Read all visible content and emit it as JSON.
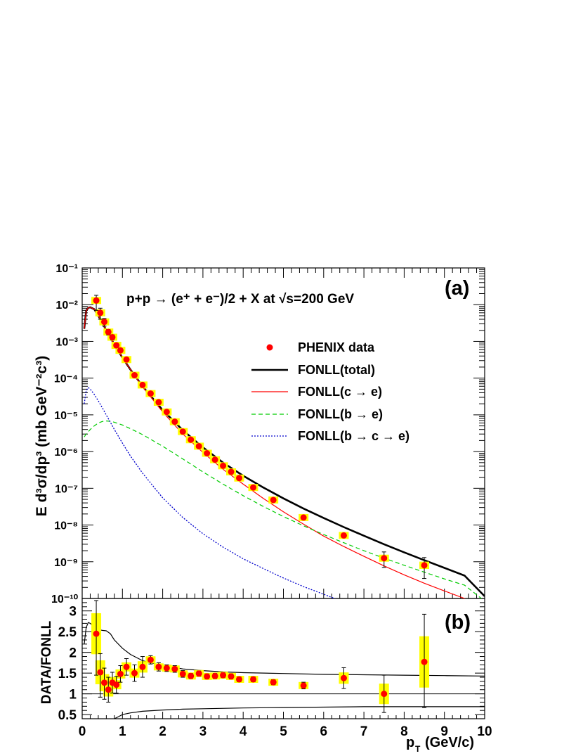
{
  "chart_data": [
    {
      "panel": "a",
      "type": "scatter",
      "panel_label": "(a)",
      "title": "p+p → (e⁺ + e⁻)/2 + X at √s=200 GeV",
      "ylabel": "E d³σ/dp³ (mb GeV⁻²c³)",
      "yscale": "log",
      "ylim": [
        1e-10,
        0.1
      ],
      "xlim": [
        0,
        10
      ],
      "y_tick_labels": [
        "10⁻¹⁰",
        "10⁻⁹",
        "10⁻⁸",
        "10⁻⁷",
        "10⁻⁶",
        "10⁻⁵",
        "10⁻⁴",
        "10⁻³",
        "10⁻²",
        "10⁻¹"
      ],
      "legend_position": "top-right",
      "series": [
        {
          "name": "PHENIX data",
          "style": "points",
          "color": "#ff0000",
          "x": [
            0.35,
            0.45,
            0.55,
            0.65,
            0.75,
            0.85,
            0.95,
            1.1,
            1.3,
            1.5,
            1.7,
            1.9,
            2.1,
            2.3,
            2.5,
            2.7,
            2.9,
            3.1,
            3.3,
            3.5,
            3.7,
            3.9,
            4.25,
            4.75,
            5.5,
            6.5,
            7.5,
            8.5
          ],
          "y": [
            0.013,
            0.006,
            0.0034,
            0.0018,
            0.0013,
            0.00078,
            0.00057,
            0.00032,
            0.00012,
            6.5e-05,
            3.8e-05,
            2.2e-05,
            1.2e-05,
            6.5e-06,
            3.5e-06,
            2.1e-06,
            1.4e-06,
            9e-07,
            6e-07,
            4.1e-07,
            2.8e-07,
            1.9e-07,
            1.05e-07,
            4.8e-08,
            1.6e-08,
            5.2e-09,
            1.25e-09,
            8e-10
          ],
          "yerr_low": [
            0.006,
            0.002,
            0.0008,
            0.0003,
            0.0002,
            0.0001,
            7e-05,
            3.5e-05,
            1.2e-05,
            6e-06,
            3e-06,
            1.6e-06,
            8e-07,
            4e-07,
            2e-07,
            1.2e-07,
            8e-08,
            5e-08,
            3e-08,
            2e-08,
            1.4e-08,
            9e-09,
            5e-09,
            2.5e-09,
            1e-09,
            3.5e-10,
            5.5e-10,
            4.5e-10
          ],
          "yerr_high": [
            0.005,
            0.002,
            0.0008,
            0.0003,
            0.0002,
            0.0001,
            7e-05,
            3.5e-05,
            1.2e-05,
            6e-06,
            3e-06,
            1.6e-06,
            8e-07,
            4e-07,
            2e-07,
            1.2e-07,
            8e-08,
            5e-08,
            3e-08,
            2e-08,
            1.4e-08,
            9e-09,
            5e-09,
            2.5e-09,
            1e-09,
            3.5e-10,
            6e-10,
            5e-10
          ]
        },
        {
          "name": "FONLL(total)",
          "style": "solid-thick",
          "color": "#000000",
          "x": [
            0.05,
            0.1,
            0.15,
            0.2,
            0.3,
            0.4,
            0.5,
            0.6,
            0.8,
            1.0,
            1.2,
            1.5,
            2.0,
            2.5,
            3.0,
            3.5,
            4.0,
            4.5,
            5.0,
            5.5,
            6.0,
            6.5,
            7.0,
            7.5,
            8.0,
            8.5,
            9.0,
            9.5,
            10.0
          ],
          "y": [
            0.0022,
            0.0068,
            0.0082,
            0.0085,
            0.0075,
            0.005,
            0.0032,
            0.002,
            0.00082,
            0.00036,
            0.00017,
            6e-05,
            1.35e-05,
            3.8e-06,
            1.3e-06,
            5e-07,
            2.2e-07,
            1.05e-07,
            5.3e-08,
            2.8e-08,
            1.55e-08,
            8.8e-09,
            5.1e-09,
            3e-09,
            1.8e-09,
            1.1e-09,
            6.8e-10,
            4.2e-10,
            1.15e-10
          ]
        },
        {
          "name": "FONLL(c → e)",
          "style": "solid-thin",
          "color": "#ff0000",
          "x": [
            0.05,
            0.1,
            0.15,
            0.2,
            0.3,
            0.4,
            0.5,
            0.6,
            0.8,
            1.0,
            1.2,
            1.5,
            2.0,
            2.5,
            3.0,
            3.5,
            4.0,
            4.5,
            5.0,
            5.5,
            6.0,
            6.5,
            7.0,
            7.5,
            8.0,
            8.5,
            9.0,
            9.5,
            9.9
          ],
          "y": [
            0.0022,
            0.0068,
            0.0082,
            0.0085,
            0.0075,
            0.005,
            0.0032,
            0.002,
            0.00082,
            0.00036,
            0.00017,
            5.8e-05,
            1.2e-05,
            3e-06,
            9.5e-07,
            3.3e-07,
            1.3e-07,
            5.3e-08,
            2.3e-08,
            1.05e-08,
            5e-09,
            2.6e-09,
            1.4e-09,
            7.7e-10,
            4.4e-10,
            2.6e-10,
            1.6e-10,
            1e-10,
            6.5e-11
          ]
        },
        {
          "name": "FONLL(b → e)",
          "style": "dashed",
          "color": "#00cc00",
          "x": [
            0.05,
            0.1,
            0.2,
            0.3,
            0.4,
            0.5,
            0.6,
            0.7,
            0.8,
            1.0,
            1.2,
            1.5,
            2.0,
            2.5,
            3.0,
            3.5,
            4.0,
            4.5,
            5.0,
            5.5,
            6.0,
            6.5,
            7.0,
            7.5,
            8.0,
            8.5,
            9.0,
            9.5,
            10.0
          ],
          "y": [
            2.5e-06,
            3e-06,
            4e-06,
            5e-06,
            6e-06,
            6.6e-06,
            6.8e-06,
            6.7e-06,
            6.3e-06,
            5.3e-06,
            4.2e-06,
            2.9e-06,
            1.4e-06,
            6.3e-07,
            2.8e-07,
            1.3e-07,
            6.3e-08,
            3.2e-08,
            1.7e-08,
            9.5e-09,
            5.5e-09,
            3.3e-09,
            2e-09,
            1.25e-09,
            8e-10,
            5.2e-10,
            3.4e-10,
            2.3e-10,
            8.5e-11
          ]
        },
        {
          "name": "FONLL(b → c → e)",
          "style": "dotted",
          "color": "#0000cc",
          "x": [
            0.05,
            0.1,
            0.15,
            0.2,
            0.3,
            0.4,
            0.5,
            0.6,
            0.8,
            1.0,
            1.2,
            1.5,
            2.0,
            2.5,
            3.0,
            3.5,
            4.0,
            4.5,
            5.0,
            5.5,
            6.0,
            6.5,
            7.0,
            7.2
          ],
          "y": [
            2e-05,
            4.5e-05,
            5.5e-05,
            5e-05,
            3.6e-05,
            2.4e-05,
            1.55e-05,
            9.8e-06,
            4e-06,
            1.7e-06,
            7.5e-07,
            2.6e-07,
            5.5e-08,
            1.6e-08,
            5.8e-09,
            2.5e-09,
            1.2e-09,
            6.5e-10,
            3.6e-10,
            2.1e-10,
            1.3e-10,
            8e-11,
            5e-11,
            4e-11
          ]
        }
      ]
    },
    {
      "panel": "b",
      "type": "scatter",
      "panel_label": "(b)",
      "ylabel": "DATA/FONLL",
      "xlabel": "p",
      "xlabel_sub": "T",
      "xlabel_unit": "(GeV/c)",
      "ylim": [
        0.4,
        3.3
      ],
      "xlim": [
        0,
        10
      ],
      "x_ticks": [
        0,
        1,
        2,
        3,
        4,
        5,
        6,
        7,
        8,
        9,
        10
      ],
      "x_tick_labels": [
        "0",
        "1",
        "2",
        "3",
        "4",
        "5",
        "6",
        "7",
        "8",
        "9",
        "10"
      ],
      "y_ticks": [
        0.5,
        1,
        1.5,
        2,
        2.5,
        3
      ],
      "y_tick_labels": [
        "0.5",
        "1",
        "1.5",
        "2",
        "2.5",
        "3"
      ],
      "reference_line": 1,
      "series": [
        {
          "name": "ratio",
          "style": "points",
          "color": "#ff0000",
          "x": [
            0.35,
            0.45,
            0.55,
            0.65,
            0.75,
            0.85,
            0.95,
            1.1,
            1.3,
            1.5,
            1.7,
            1.9,
            2.1,
            2.3,
            2.5,
            2.7,
            2.9,
            3.1,
            3.3,
            3.5,
            3.7,
            3.9,
            4.25,
            4.75,
            5.5,
            6.5,
            7.5,
            8.5
          ],
          "y": [
            2.45,
            1.52,
            1.27,
            1.1,
            1.27,
            1.22,
            1.48,
            1.65,
            1.5,
            1.65,
            1.82,
            1.65,
            1.62,
            1.6,
            1.48,
            1.43,
            1.49,
            1.42,
            1.43,
            1.45,
            1.42,
            1.35,
            1.35,
            1.28,
            1.2,
            1.38,
            1.0,
            1.77
          ],
          "yerr_low": [
            1.0,
            0.6,
            0.4,
            0.3,
            0.25,
            0.2,
            0.2,
            0.2,
            0.2,
            0.25,
            0.1,
            0.1,
            0.08,
            0.08,
            0.08,
            0.06,
            0.06,
            0.06,
            0.06,
            0.06,
            0.06,
            0.06,
            0.06,
            0.06,
            0.08,
            0.25,
            0.45,
            1.1
          ],
          "yerr_high": [
            0.8,
            0.45,
            0.35,
            0.3,
            0.25,
            0.2,
            0.2,
            0.2,
            0.2,
            0.25,
            0.1,
            0.1,
            0.08,
            0.08,
            0.08,
            0.06,
            0.06,
            0.06,
            0.06,
            0.06,
            0.06,
            0.06,
            0.06,
            0.06,
            0.08,
            0.25,
            0.45,
            1.15
          ]
        },
        {
          "name": "upper band",
          "style": "solid-thin",
          "color": "#000000",
          "x": [
            0.05,
            0.1,
            0.15,
            0.2,
            0.3,
            0.4,
            0.5,
            0.6,
            0.7,
            0.8,
            1.0,
            1.2,
            1.5,
            2.0,
            2.5,
            3.0,
            3.5,
            4.0,
            5.0,
            6.0,
            7.0,
            8.0,
            9.0,
            10.0
          ],
          "y": [
            2.2,
            2.6,
            2.72,
            2.7,
            2.62,
            2.55,
            2.53,
            2.52,
            2.45,
            2.3,
            2.1,
            1.95,
            1.8,
            1.68,
            1.6,
            1.56,
            1.53,
            1.51,
            1.49,
            1.47,
            1.46,
            1.45,
            1.44,
            1.43
          ]
        },
        {
          "name": "lower band",
          "style": "solid-thin",
          "color": "#000000",
          "x": [
            0.8,
            0.9,
            1.0,
            1.2,
            1.5,
            2.0,
            2.5,
            3.0,
            4.0,
            5.0,
            6.0,
            7.0,
            8.0,
            9.0,
            10.0
          ],
          "y": [
            0.4,
            0.45,
            0.5,
            0.54,
            0.58,
            0.61,
            0.63,
            0.64,
            0.66,
            0.67,
            0.68,
            0.69,
            0.69,
            0.69,
            0.69
          ]
        }
      ]
    }
  ]
}
